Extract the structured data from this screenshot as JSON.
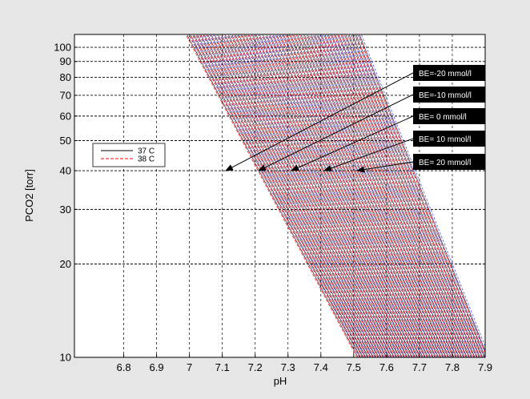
{
  "chart_data": {
    "type": "line",
    "title": "",
    "xlabel": "pH",
    "ylabel": "PCO2 [torr]",
    "xlim": [
      6.65,
      7.9
    ],
    "ylim": [
      10,
      110
    ],
    "y_scale": "log",
    "x_ticks": [
      "6.8",
      "6.9",
      "7",
      "7.1",
      "7.2",
      "7.3",
      "7.4",
      "7.5",
      "7.6",
      "7.7",
      "7.8",
      "7.9"
    ],
    "y_ticks": [
      "10",
      "20",
      "30",
      "40",
      "50",
      "60",
      "70",
      "80",
      "90",
      "100"
    ],
    "grid": true,
    "legend_position": "left",
    "series": [
      {
        "name": "37 C",
        "color": "#000000",
        "dash": "solid"
      },
      {
        "name": "38 C",
        "color": "#ff0000",
        "dash": "dashed"
      }
    ],
    "family_lines": {
      "be_min": -20,
      "be_max": 30,
      "be_step": 1,
      "blue_color": "#3b3bff"
    },
    "annotations": [
      {
        "text": "BE=-20 mmol/l",
        "x": 7.12,
        "y": 40
      },
      {
        "text": "BE=-10 mmol/l",
        "x": 7.22,
        "y": 40
      },
      {
        "text": "BE= 0 mmol/l",
        "x": 7.32,
        "y": 40
      },
      {
        "text": "BE= 10 mmol/l",
        "x": 7.42,
        "y": 40
      },
      {
        "text": "BE= 20 mmol/l",
        "x": 7.52,
        "y": 40
      }
    ]
  }
}
